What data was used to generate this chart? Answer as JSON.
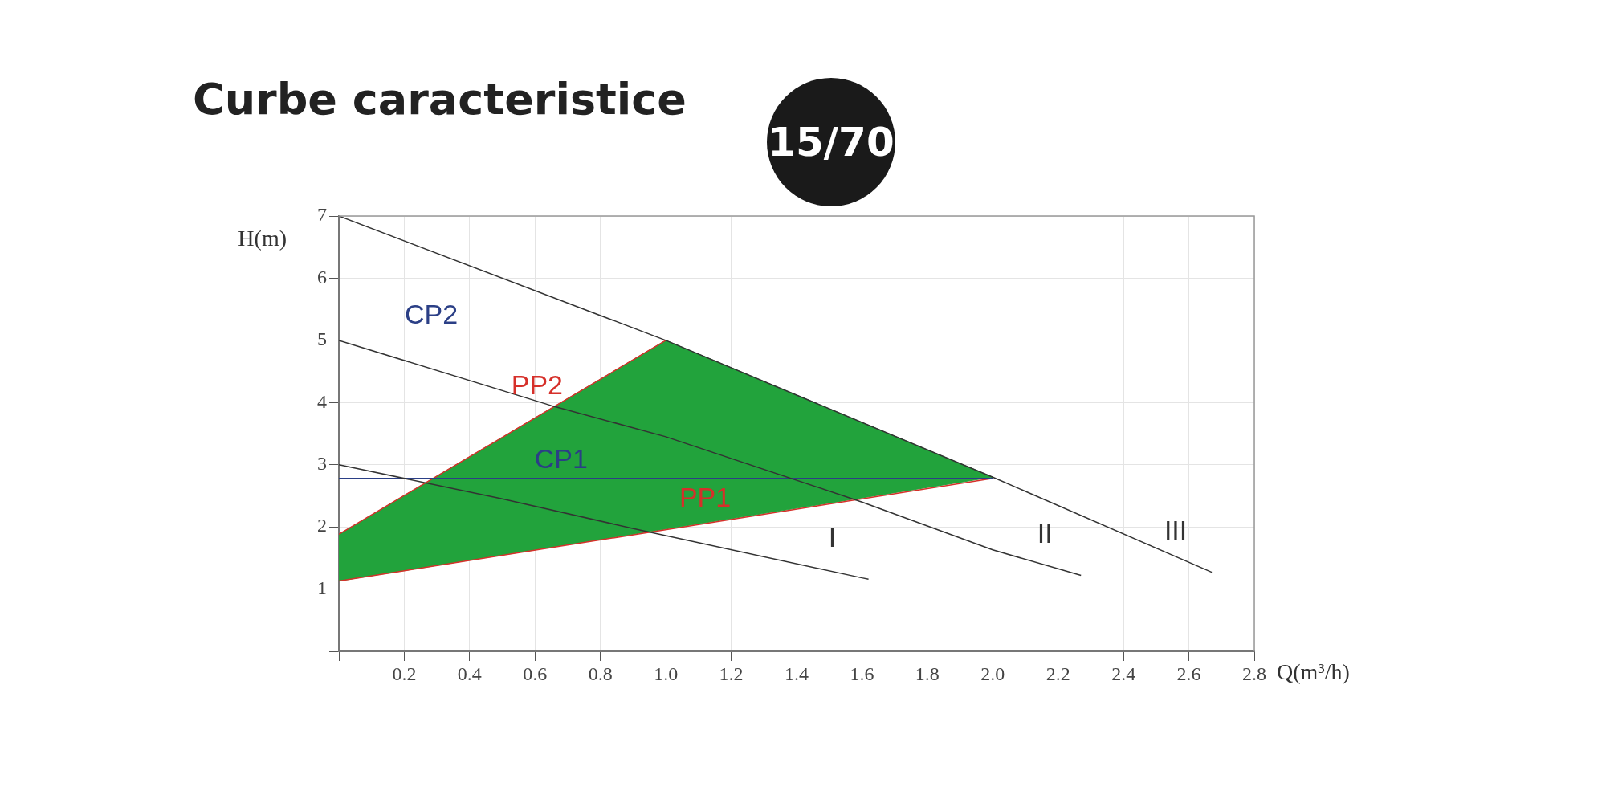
{
  "chart_data": {
    "type": "line",
    "title": "Curbe caracteristice",
    "xlabel": "Q(m³/h)",
    "ylabel": "H(m)",
    "xlim": [
      0,
      2.8
    ],
    "ylim": [
      0,
      7
    ],
    "xticks": [
      {
        "value": 0,
        "label": null
      },
      0.2,
      0.4,
      0.6,
      0.8,
      {
        "value": 1,
        "label": "1.0"
      },
      1.2,
      1.4,
      1.6,
      1.8,
      {
        "value": 2,
        "label": "2.0"
      },
      2.2,
      2.4,
      2.6,
      2.8
    ],
    "yticks": [
      {
        "value": 0,
        "label": null
      },
      1,
      2,
      3,
      4,
      5,
      6,
      7
    ],
    "grid": true,
    "legend": false,
    "marker": "none",
    "line_style": "solid",
    "series": [
      {
        "type": "area",
        "color": "#22a33c",
        "x": [
          0,
          1,
          2,
          0
        ],
        "values": [
          1.88,
          5,
          2.8,
          1.13
        ]
      },
      {
        "name": "III",
        "color": "#333333",
        "x": [
          0,
          1,
          2,
          2.67
        ],
        "values": [
          7,
          5,
          2.8,
          1.27
        ]
      },
      {
        "name": "II",
        "color": "#333333",
        "x": [
          0,
          0.65,
          1,
          1.6,
          2,
          2.27
        ],
        "values": [
          5,
          3.95,
          3.45,
          2.4,
          1.63,
          1.22
        ]
      },
      {
        "name": "I",
        "color": "#333333",
        "x": [
          0,
          0.5,
          0.92,
          1.6,
          1.62
        ],
        "values": [
          3,
          2.45,
          1.95,
          1.18,
          1.16
        ]
      },
      {
        "name": "CP1",
        "color": "#2b3f86",
        "x": [
          0,
          2
        ],
        "values": [
          2.78,
          2.78
        ]
      },
      {
        "name": "PP2",
        "color": "#d6302a",
        "x": [
          0,
          1
        ],
        "values": [
          1.88,
          5
        ]
      },
      {
        "name": "PP1",
        "color": "#d6302a",
        "x": [
          0,
          2
        ],
        "values": [
          1.13,
          2.78
        ]
      }
    ],
    "annotations": [
      "15/70",
      "CP2"
    ]
  }
}
